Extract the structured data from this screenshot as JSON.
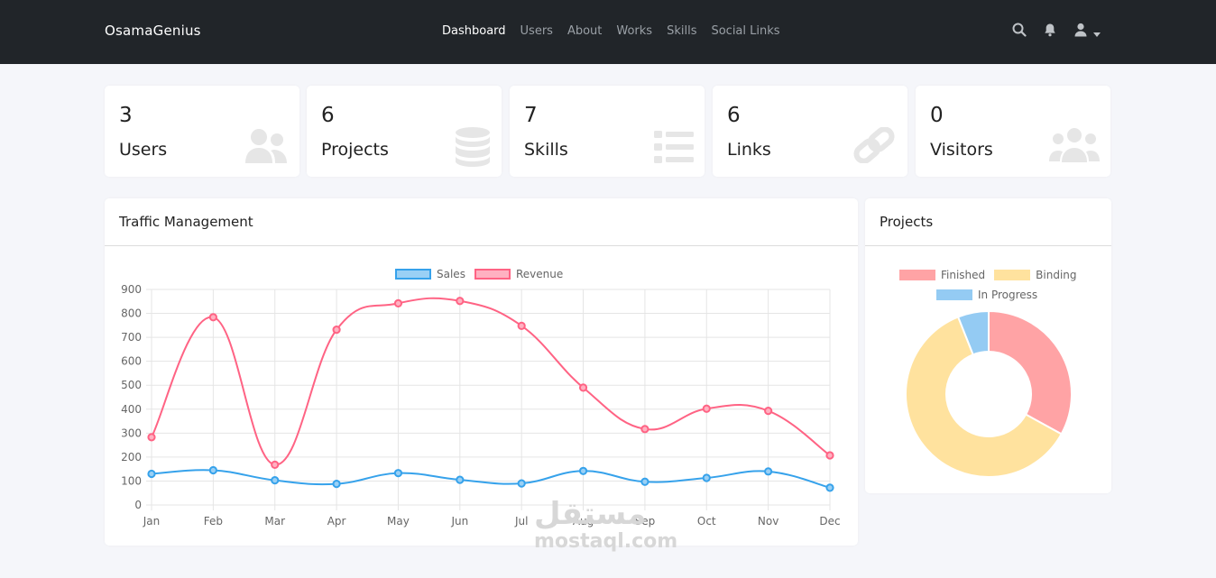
{
  "navbar": {
    "brand": "OsamaGenius",
    "links": [
      {
        "label": "Dashboard",
        "active": true
      },
      {
        "label": "Users",
        "active": false
      },
      {
        "label": "About",
        "active": false
      },
      {
        "label": "Works",
        "active": false
      },
      {
        "label": "Skills",
        "active": false
      },
      {
        "label": "Social Links",
        "active": false
      }
    ],
    "icons": [
      "search-icon",
      "bell-icon",
      "user-icon",
      "caret-down-icon"
    ]
  },
  "stats": [
    {
      "value": "3",
      "label": "Users",
      "icon": "users-icon"
    },
    {
      "value": "6",
      "label": "Projects",
      "icon": "database-icon"
    },
    {
      "value": "7",
      "label": "Skills",
      "icon": "list-icon"
    },
    {
      "value": "6",
      "label": "Links",
      "icon": "link-icon"
    },
    {
      "value": "0",
      "label": "Visitors",
      "icon": "visitors-icon"
    }
  ],
  "traffic": {
    "title": "Traffic Management",
    "chart_data": {
      "type": "line",
      "categories": [
        "Jan",
        "Feb",
        "Mar",
        "Apr",
        "May",
        "Jun",
        "Jul",
        "Aug",
        "Sep",
        "Oct",
        "Nov",
        "Dec"
      ],
      "series": [
        {
          "name": "Sales",
          "color": "#36a2eb",
          "fill": "#9ad0f5",
          "values": [
            130,
            145,
            103,
            88,
            133,
            105,
            90,
            142,
            97,
            113,
            140,
            72
          ]
        },
        {
          "name": "Revenue",
          "color": "#ff6384",
          "fill": "#ffb1c1",
          "values": [
            283,
            784,
            168,
            732,
            842,
            852,
            748,
            490,
            317,
            402,
            393,
            207
          ]
        }
      ],
      "ylim": [
        0,
        900
      ],
      "yticks": [
        0,
        100,
        200,
        300,
        400,
        500,
        600,
        700,
        800,
        900
      ],
      "grid": true,
      "legend": "top"
    }
  },
  "projects": {
    "title": "Projects",
    "chart_data": {
      "type": "pie",
      "donut": true,
      "categories": [
        "Finished",
        "Binding",
        "In Progress"
      ],
      "values": [
        33,
        61,
        6
      ],
      "colors": [
        "#ffa3a5",
        "#ffe29e",
        "#94cbf3"
      ],
      "legend": "top"
    }
  },
  "watermark": {
    "arabic": "مستقل",
    "latin": "mostaql.com"
  }
}
